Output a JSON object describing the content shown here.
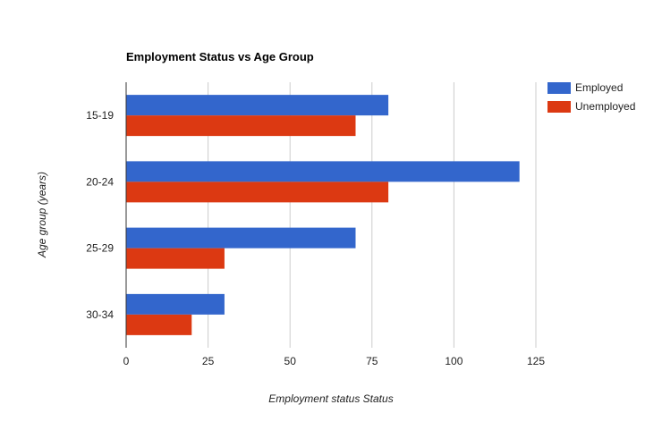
{
  "chart_data": {
    "type": "bar",
    "orientation": "horizontal",
    "title": "Employment Status vs Age Group",
    "xlabel": "Employment status  Status",
    "ylabel": "Age group (years)",
    "categories": [
      "15-19",
      "20-24",
      "25-29",
      "30-34"
    ],
    "series": [
      {
        "name": "Employed",
        "color": "#3366cc",
        "values": [
          80,
          120,
          70,
          30
        ]
      },
      {
        "name": "Unemployed",
        "color": "#dc3912",
        "values": [
          70,
          80,
          30,
          20
        ]
      }
    ],
    "xlim": [
      0,
      125
    ],
    "xticks": [
      0,
      25,
      50,
      75,
      100,
      125
    ],
    "grid": true,
    "legend_position": "right"
  }
}
